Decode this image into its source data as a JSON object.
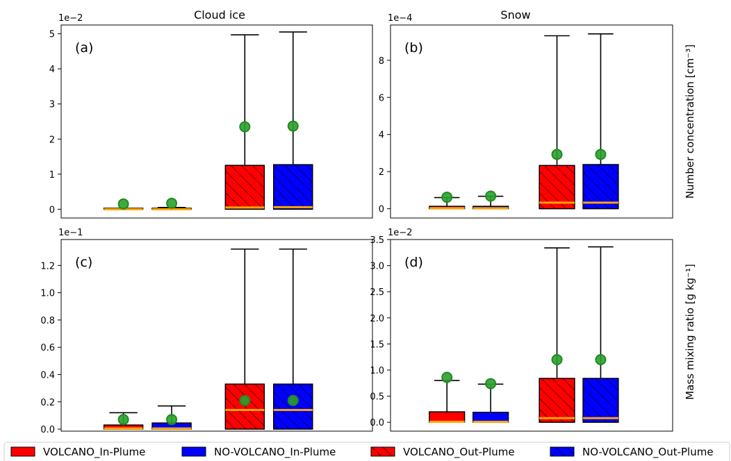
{
  "figure": {
    "col_titles": [
      "Cloud ice",
      "Snow"
    ],
    "row_ylabels": [
      "Number concentration [cm⁻³]",
      "Mass mixing ratio [g kg⁻¹]"
    ]
  },
  "chart_data": [
    {
      "type": "box",
      "panel": "(a)",
      "title": "Cloud ice",
      "offset_label": "1e−2",
      "ylim": [
        -0.25,
        5.25
      ],
      "yticks": [
        0,
        1,
        2,
        3,
        4,
        5
      ],
      "ytick_labels": [
        "0",
        "1",
        "2",
        "3",
        "4",
        "5"
      ],
      "ylabel": "",
      "boxes": [
        {
          "series": "VOLCANO_In-Plume",
          "q1": 0,
          "median": 0,
          "q3": 0.02,
          "whisker_high": 0.02,
          "mean": 0.15
        },
        {
          "series": "NO-VOLCANO_In-Plume",
          "q1": 0,
          "median": 0,
          "q3": 0.03,
          "whisker_high": 0.05,
          "mean": 0.17
        },
        {
          "series": "VOLCANO_Out-Plume",
          "q1": 0,
          "median": 0.05,
          "q3": 1.25,
          "whisker_high": 4.97,
          "mean": 2.35
        },
        {
          "series": "NO-VOLCANO_Out-Plume",
          "q1": 0,
          "median": 0.06,
          "q3": 1.27,
          "whisker_high": 5.05,
          "mean": 2.37
        }
      ]
    },
    {
      "type": "box",
      "panel": "(b)",
      "title": "Snow",
      "offset_label": "1e−4",
      "ylim": [
        -0.5,
        9.9
      ],
      "yticks": [
        0,
        2,
        4,
        6,
        8
      ],
      "ytick_labels": [
        "0",
        "2",
        "4",
        "6",
        "8"
      ],
      "ylabel": "Number concentration [cm⁻³]",
      "boxes": [
        {
          "series": "VOLCANO_In-Plume",
          "q1": 0,
          "median": 0.03,
          "q3": 0.13,
          "whisker_high": 0.6,
          "mean": 0.62
        },
        {
          "series": "NO-VOLCANO_In-Plume",
          "q1": 0,
          "median": 0.03,
          "q3": 0.13,
          "whisker_high": 0.67,
          "mean": 0.68
        },
        {
          "series": "VOLCANO_Out-Plume",
          "q1": 0,
          "median": 0.33,
          "q3": 2.33,
          "whisker_high": 9.32,
          "mean": 2.93
        },
        {
          "series": "NO-VOLCANO_Out-Plume",
          "q1": 0,
          "median": 0.33,
          "q3": 2.38,
          "whisker_high": 9.42,
          "mean": 2.93
        }
      ]
    },
    {
      "type": "box",
      "panel": "(c)",
      "title": "",
      "offset_label": "1e−1",
      "ylim": [
        -0.015,
        1.39
      ],
      "yticks": [
        0,
        0.2,
        0.4,
        0.6,
        0.8,
        1.0,
        1.2
      ],
      "ytick_labels": [
        "0.0",
        "0.2",
        "0.4",
        "0.6",
        "0.8",
        "1.0",
        "1.2"
      ],
      "ylabel": "",
      "boxes": [
        {
          "series": "VOLCANO_In-Plume",
          "q1": 0,
          "median": 0.005,
          "q3": 0.03,
          "whisker_high": 0.12,
          "mean": 0.07
        },
        {
          "series": "NO-VOLCANO_In-Plume",
          "q1": 0,
          "median": 0.005,
          "q3": 0.045,
          "whisker_high": 0.17,
          "mean": 0.07
        },
        {
          "series": "VOLCANO_Out-Plume",
          "q1": 0,
          "median": 0.14,
          "q3": 0.33,
          "whisker_high": 1.32,
          "mean": 0.21
        },
        {
          "series": "NO-VOLCANO_Out-Plume",
          "q1": 0,
          "median": 0.14,
          "q3": 0.33,
          "whisker_high": 1.32,
          "mean": 0.21
        }
      ]
    },
    {
      "type": "box",
      "panel": "(d)",
      "title": "",
      "offset_label": "1e−2",
      "ylim": [
        -0.17,
        3.5
      ],
      "yticks": [
        0,
        0.5,
        1.0,
        1.5,
        2.0,
        2.5,
        3.0,
        3.5
      ],
      "ytick_labels": [
        "0.0",
        "0.5",
        "1.0",
        "1.5",
        "2.0",
        "2.5",
        "3.0",
        "3.5"
      ],
      "ylabel": "Mass mixing ratio [g kg⁻¹]",
      "boxes": [
        {
          "series": "VOLCANO_In-Plume",
          "q1": 0,
          "median": 0.01,
          "q3": 0.2,
          "whisker_high": 0.8,
          "mean": 0.86
        },
        {
          "series": "NO-VOLCANO_In-Plume",
          "q1": 0,
          "median": 0.01,
          "q3": 0.19,
          "whisker_high": 0.73,
          "mean": 0.74
        },
        {
          "series": "VOLCANO_Out-Plume",
          "q1": 0,
          "median": 0.08,
          "q3": 0.84,
          "whisker_high": 3.34,
          "mean": 1.2
        },
        {
          "series": "NO-VOLCANO_Out-Plume",
          "q1": 0,
          "median": 0.08,
          "q3": 0.84,
          "whisker_high": 3.36,
          "mean": 1.2
        }
      ]
    }
  ],
  "legend": {
    "placement": "bottom",
    "items": [
      {
        "label": "VOLCANO_In-Plume",
        "color": "#ff0000",
        "hatch": false
      },
      {
        "label": "NO-VOLCANO_In-Plume",
        "color": "#0000ff",
        "hatch": false
      },
      {
        "label": "VOLCANO_Out-Plume",
        "color": "#ff0000",
        "hatch": true
      },
      {
        "label": "NO-VOLCANO_Out-Plume",
        "color": "#0000ff",
        "hatch": true
      }
    ]
  },
  "colors": {
    "volcano": "#ff0000",
    "no_volcano": "#0000ff",
    "median_line": "#ffa500",
    "mean_marker": "#2ca02c",
    "mean_marker_edge": "#1f8a1f"
  }
}
